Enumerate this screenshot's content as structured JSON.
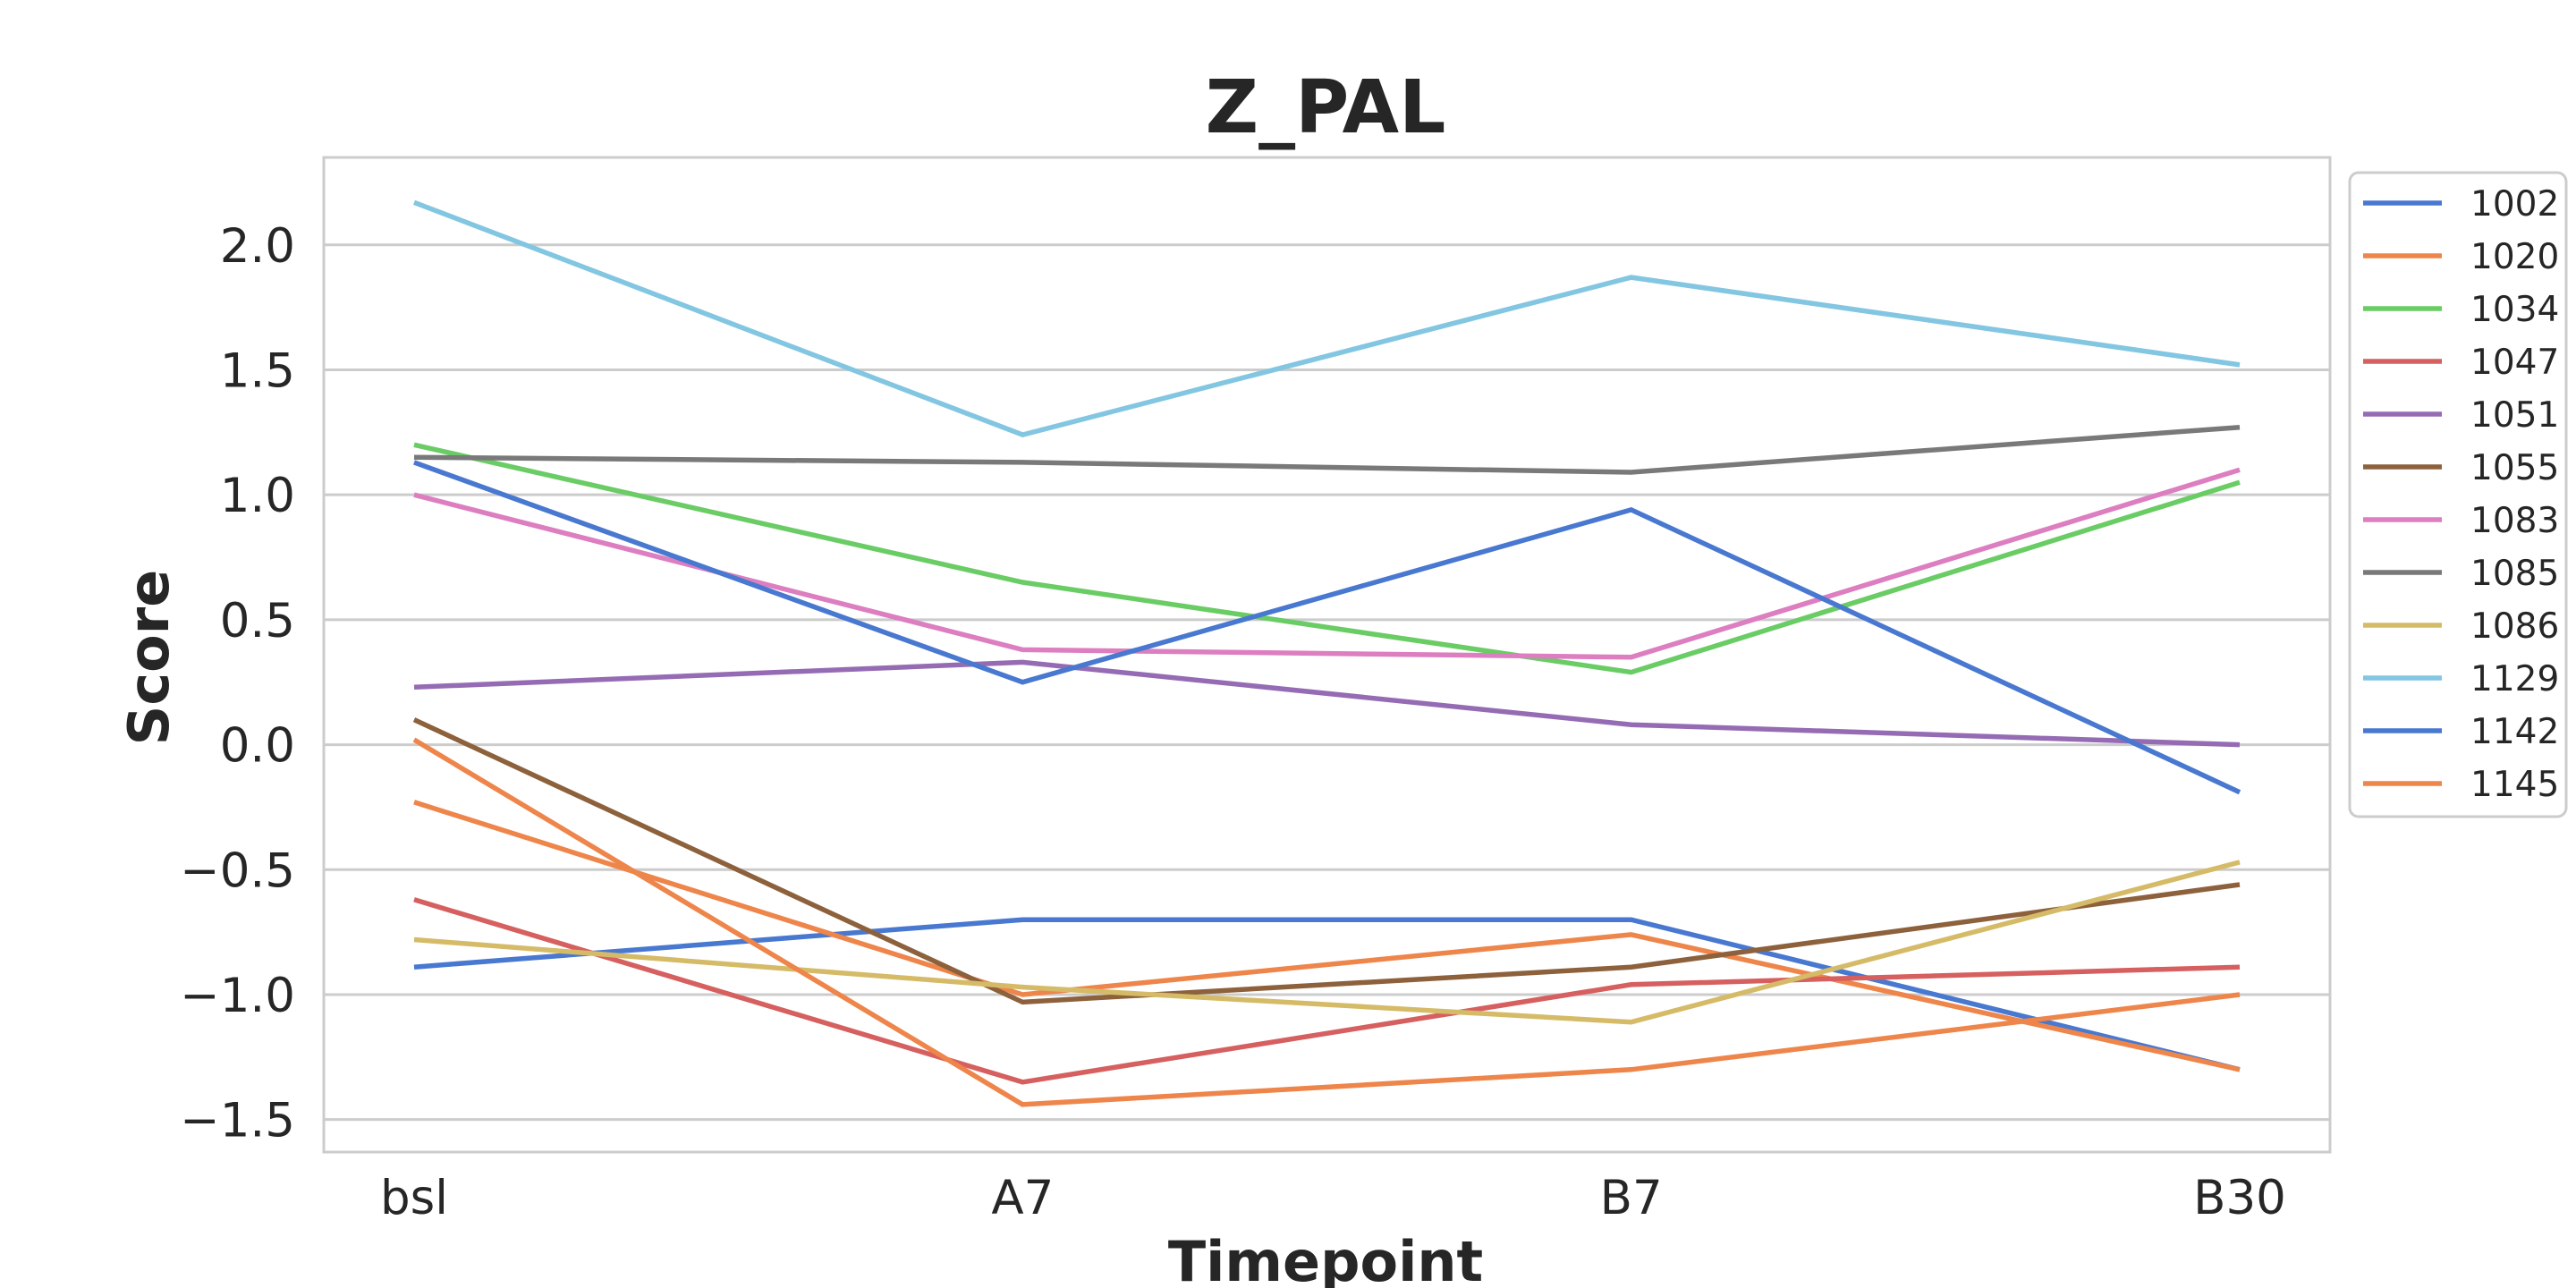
{
  "chart_data": {
    "type": "line",
    "title": "Z_PAL",
    "xlabel": "Timepoint",
    "ylabel": "Score",
    "categories": [
      "bsl",
      "A7",
      "B7",
      "B30"
    ],
    "ylim": [
      -1.63,
      2.35
    ],
    "yticks": [
      2.0,
      1.5,
      1.0,
      0.5,
      0.0,
      -0.5,
      -1.0,
      -1.5
    ],
    "ytick_labels": [
      "2.0",
      "1.5",
      "1.0",
      "0.5",
      "0.0",
      "−0.5",
      "−1.0",
      "−1.5"
    ],
    "grid": "horizontal",
    "legend_position": "outside-right-top",
    "series": [
      {
        "name": "1002",
        "color": "#4878d0",
        "values": [
          -0.89,
          -0.7,
          -0.7,
          -1.3
        ]
      },
      {
        "name": "1020",
        "color": "#ee854a",
        "values": [
          -0.23,
          -1.0,
          -0.76,
          -1.3
        ]
      },
      {
        "name": "1034",
        "color": "#6acc64",
        "values": [
          1.2,
          0.65,
          0.29,
          1.05
        ]
      },
      {
        "name": "1047",
        "color": "#d65f5f",
        "values": [
          -0.62,
          -1.35,
          -0.96,
          -0.89
        ]
      },
      {
        "name": "1051",
        "color": "#956cb4",
        "values": [
          0.23,
          0.33,
          0.08,
          0.0
        ]
      },
      {
        "name": "1055",
        "color": "#8c613c",
        "values": [
          0.1,
          -1.03,
          -0.89,
          -0.56
        ]
      },
      {
        "name": "1083",
        "color": "#dc7ec0",
        "values": [
          1.0,
          0.38,
          0.35,
          1.1
        ]
      },
      {
        "name": "1085",
        "color": "#797979",
        "values": [
          1.15,
          1.13,
          1.09,
          1.27
        ]
      },
      {
        "name": "1086",
        "color": "#d5bb67",
        "values": [
          -0.78,
          -0.97,
          -1.11,
          -0.47
        ]
      },
      {
        "name": "1129",
        "color": "#82c6e2",
        "values": [
          2.17,
          1.24,
          1.87,
          1.52
        ]
      },
      {
        "name": "1142",
        "color": "#4878d0",
        "values": [
          1.13,
          0.25,
          0.94,
          -0.19
        ]
      },
      {
        "name": "1145",
        "color": "#ee854a",
        "values": [
          0.02,
          -1.44,
          -1.3,
          -1.0
        ]
      }
    ]
  }
}
